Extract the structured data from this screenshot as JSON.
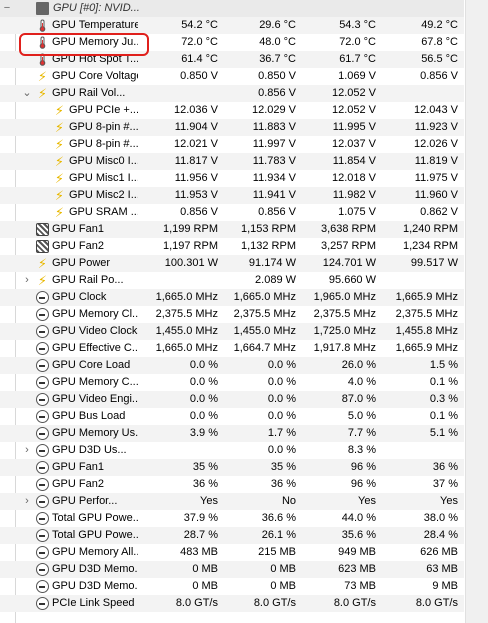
{
  "sensor_group": "GPU [#0]: NVID...",
  "rows": [
    {
      "name": "GPU Temperature",
      "icon": "thermometer-icon",
      "level": 1,
      "v1": "54.2 °C",
      "v2": "29.6 °C",
      "v3": "54.3 °C",
      "v4": "49.2 °C"
    },
    {
      "name": "GPU Memory Ju...",
      "icon": "thermometer-icon",
      "level": 1,
      "v1": "72.0 °C",
      "v2": "48.0 °C",
      "v3": "72.0 °C",
      "v4": "67.8 °C"
    },
    {
      "name": "GPU Hot Spot T...",
      "icon": "thermometer-icon",
      "level": 1,
      "v1": "61.4 °C",
      "v2": "36.7 °C",
      "v3": "61.7 °C",
      "v4": "56.5 °C"
    },
    {
      "name": "GPU Core Voltage",
      "icon": "bolt-icon",
      "level": 1,
      "v1": "0.850 V",
      "v2": "0.850 V",
      "v3": "1.069 V",
      "v4": "0.856 V"
    },
    {
      "name": "GPU Rail Vol...",
      "icon": "bolt-icon",
      "level": 1,
      "expander": "expanded",
      "v1": "",
      "v2": "0.856 V",
      "v3": "12.052 V",
      "v4": ""
    },
    {
      "name": "GPU PCIe +...",
      "icon": "bolt-icon",
      "level": 2,
      "v1": "12.036 V",
      "v2": "12.029 V",
      "v3": "12.052 V",
      "v4": "12.043 V"
    },
    {
      "name": "GPU 8-pin #...",
      "icon": "bolt-icon",
      "level": 2,
      "v1": "11.904 V",
      "v2": "11.883 V",
      "v3": "11.995 V",
      "v4": "11.923 V"
    },
    {
      "name": "GPU 8-pin #...",
      "icon": "bolt-icon",
      "level": 2,
      "v1": "12.021 V",
      "v2": "11.997 V",
      "v3": "12.037 V",
      "v4": "12.026 V"
    },
    {
      "name": "GPU Misc0 I...",
      "icon": "bolt-icon",
      "level": 2,
      "v1": "11.817 V",
      "v2": "11.783 V",
      "v3": "11.854 V",
      "v4": "11.819 V"
    },
    {
      "name": "GPU Misc1 I...",
      "icon": "bolt-icon",
      "level": 2,
      "v1": "11.956 V",
      "v2": "11.934 V",
      "v3": "12.018 V",
      "v4": "11.975 V"
    },
    {
      "name": "GPU Misc2 I...",
      "icon": "bolt-icon",
      "level": 2,
      "v1": "11.953 V",
      "v2": "11.941 V",
      "v3": "11.982 V",
      "v4": "11.960 V"
    },
    {
      "name": "GPU SRAM ...",
      "icon": "bolt-icon",
      "level": 2,
      "v1": "0.856 V",
      "v2": "0.856 V",
      "v3": "1.075 V",
      "v4": "0.862 V"
    },
    {
      "name": "GPU Fan1",
      "icon": "fan-icon",
      "level": 1,
      "v1": "1,199 RPM",
      "v2": "1,153 RPM",
      "v3": "3,638 RPM",
      "v4": "1,240 RPM"
    },
    {
      "name": "GPU Fan2",
      "icon": "fan-icon",
      "level": 1,
      "v1": "1,197 RPM",
      "v2": "1,132 RPM",
      "v3": "3,257 RPM",
      "v4": "1,234 RPM"
    },
    {
      "name": "GPU Power",
      "icon": "bolt-icon",
      "level": 1,
      "v1": "100.301 W",
      "v2": "91.174 W",
      "v3": "124.701 W",
      "v4": "99.517 W"
    },
    {
      "name": "GPU Rail Po...",
      "icon": "bolt-icon",
      "level": 1,
      "expander": "collapsed",
      "v1": "",
      "v2": "2.089 W",
      "v3": "95.660 W",
      "v4": ""
    },
    {
      "name": "GPU Clock",
      "icon": "gauge-icon",
      "level": 1,
      "v1": "1,665.0 MHz",
      "v2": "1,665.0 MHz",
      "v3": "1,965.0 MHz",
      "v4": "1,665.9 MHz"
    },
    {
      "name": "GPU Memory Cl...",
      "icon": "gauge-icon",
      "level": 1,
      "v1": "2,375.5 MHz",
      "v2": "2,375.5 MHz",
      "v3": "2,375.5 MHz",
      "v4": "2,375.5 MHz"
    },
    {
      "name": "GPU Video Clock",
      "icon": "gauge-icon",
      "level": 1,
      "v1": "1,455.0 MHz",
      "v2": "1,455.0 MHz",
      "v3": "1,725.0 MHz",
      "v4": "1,455.8 MHz"
    },
    {
      "name": "GPU Effective C...",
      "icon": "gauge-icon",
      "level": 1,
      "v1": "1,665.0 MHz",
      "v2": "1,664.7 MHz",
      "v3": "1,917.8 MHz",
      "v4": "1,665.9 MHz"
    },
    {
      "name": "GPU Core Load",
      "icon": "gauge-icon",
      "level": 1,
      "v1": "0.0 %",
      "v2": "0.0 %",
      "v3": "26.0 %",
      "v4": "1.5 %"
    },
    {
      "name": "GPU Memory C...",
      "icon": "gauge-icon",
      "level": 1,
      "v1": "0.0 %",
      "v2": "0.0 %",
      "v3": "4.0 %",
      "v4": "0.1 %"
    },
    {
      "name": "GPU Video Engi...",
      "icon": "gauge-icon",
      "level": 1,
      "v1": "0.0 %",
      "v2": "0.0 %",
      "v3": "87.0 %",
      "v4": "0.3 %"
    },
    {
      "name": "GPU Bus Load",
      "icon": "gauge-icon",
      "level": 1,
      "v1": "0.0 %",
      "v2": "0.0 %",
      "v3": "5.0 %",
      "v4": "0.1 %"
    },
    {
      "name": "GPU Memory Us...",
      "icon": "gauge-icon",
      "level": 1,
      "v1": "3.9 %",
      "v2": "1.7 %",
      "v3": "7.7 %",
      "v4": "5.1 %"
    },
    {
      "name": "GPU D3D Us...",
      "icon": "gauge-icon",
      "level": 1,
      "expander": "collapsed",
      "v1": "",
      "v2": "0.0 %",
      "v3": "8.3 %",
      "v4": ""
    },
    {
      "name": "GPU Fan1",
      "icon": "gauge-icon",
      "level": 1,
      "v1": "35 %",
      "v2": "35 %",
      "v3": "96 %",
      "v4": "36 %"
    },
    {
      "name": "GPU Fan2",
      "icon": "gauge-icon",
      "level": 1,
      "v1": "36 %",
      "v2": "36 %",
      "v3": "96 %",
      "v4": "37 %"
    },
    {
      "name": "GPU Perfor...",
      "icon": "gauge-icon",
      "level": 1,
      "expander": "collapsed",
      "v1": "Yes",
      "v2": "No",
      "v3": "Yes",
      "v4": "Yes"
    },
    {
      "name": "Total GPU Powe...",
      "icon": "gauge-icon",
      "level": 1,
      "v1": "37.9 %",
      "v2": "36.6 %",
      "v3": "44.0 %",
      "v4": "38.0 %"
    },
    {
      "name": "Total GPU Powe...",
      "icon": "gauge-icon",
      "level": 1,
      "v1": "28.7 %",
      "v2": "26.1 %",
      "v3": "35.6 %",
      "v4": "28.4 %"
    },
    {
      "name": "GPU Memory All...",
      "icon": "chip-icon",
      "level": 1,
      "v1": "483 MB",
      "v2": "215 MB",
      "v3": "949 MB",
      "v4": "626 MB"
    },
    {
      "name": "GPU D3D Memo...",
      "icon": "chip-icon",
      "level": 1,
      "v1": "0 MB",
      "v2": "0 MB",
      "v3": "623 MB",
      "v4": "63 MB"
    },
    {
      "name": "GPU D3D Memo...",
      "icon": "chip-icon",
      "level": 1,
      "v1": "0 MB",
      "v2": "0 MB",
      "v3": "73 MB",
      "v4": "9 MB"
    },
    {
      "name": "PCIe Link Speed",
      "icon": "gauge-icon",
      "level": 1,
      "v1": "8.0 GT/s",
      "v2": "8.0 GT/s",
      "v3": "8.0 GT/s",
      "v4": "8.0 GT/s"
    }
  ],
  "colors": {
    "highlight_circle": "#e0201c",
    "bolt": "#e8b800"
  }
}
